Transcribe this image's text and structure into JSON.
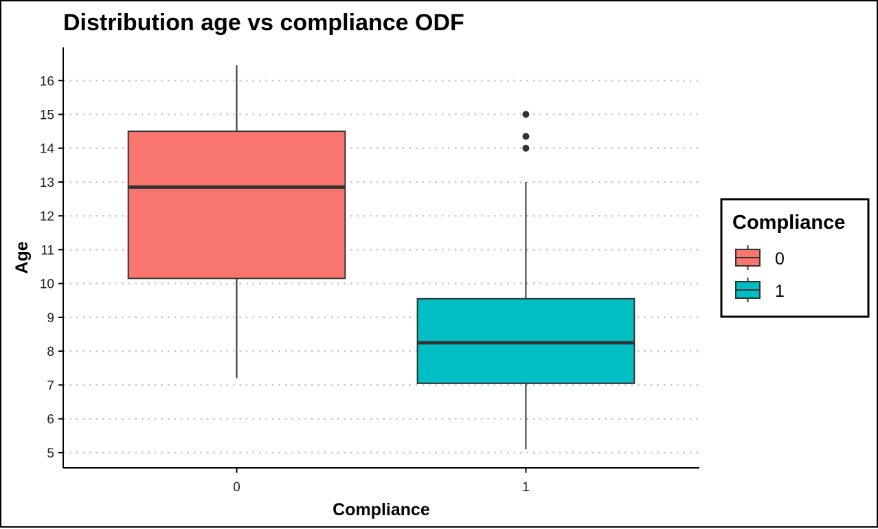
{
  "chart_data": {
    "type": "box",
    "title": "Distribution age vs compliance ODF",
    "xlabel": "Compliance",
    "ylabel": "Age",
    "categories": [
      "0",
      "1"
    ],
    "y_ticks": [
      5,
      6,
      7,
      8,
      9,
      10,
      11,
      12,
      13,
      14,
      15,
      16
    ],
    "ylim": [
      4.55,
      16.98
    ],
    "grid": "horizontal dotted",
    "legend": {
      "title": "Compliance",
      "position": "right",
      "items": [
        {
          "label": "0",
          "color": "#F8766D"
        },
        {
          "label": "1",
          "color": "#00BFC4"
        }
      ]
    },
    "boxes": [
      {
        "category": "0",
        "color": "#F8766D",
        "min": 7.2,
        "q1": 10.15,
        "median": 12.85,
        "q3": 14.5,
        "max": 16.45,
        "outliers": []
      },
      {
        "category": "1",
        "color": "#00BFC4",
        "min": 5.1,
        "q1": 7.05,
        "median": 8.25,
        "q3": 9.55,
        "max": 13.0,
        "outliers": [
          14.0,
          14.35,
          15.0
        ]
      }
    ]
  }
}
